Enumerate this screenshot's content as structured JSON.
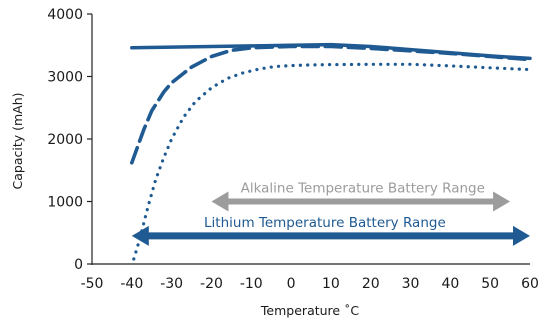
{
  "chart_data": {
    "type": "line",
    "title": "",
    "xlabel": "Temperature ˚C",
    "ylabel": "Capacity (mAh)",
    "xlim": [
      -50,
      60
    ],
    "ylim": [
      0,
      4000
    ],
    "x_ticks": [
      -50,
      -40,
      -30,
      -20,
      -10,
      0,
      10,
      20,
      30,
      40,
      50,
      60
    ],
    "y_ticks": [
      0,
      1000,
      2000,
      3000,
      4000
    ],
    "grid": false,
    "legend": "none",
    "series": [
      {
        "style": "solid",
        "color": "#1f5a92",
        "x": [
          -40,
          -30,
          -20,
          -10,
          0,
          10,
          20,
          30,
          40,
          50,
          60
        ],
        "y": [
          3460,
          3470,
          3480,
          3490,
          3500,
          3510,
          3480,
          3430,
          3380,
          3330,
          3290
        ]
      },
      {
        "style": "dashed",
        "color": "#1f5a92",
        "x": [
          -40,
          -37,
          -35,
          -32,
          -30,
          -25,
          -20,
          -15,
          -10,
          -5,
          0,
          10,
          20,
          30,
          40,
          50,
          60
        ],
        "y": [
          1620,
          2150,
          2450,
          2750,
          2900,
          3150,
          3320,
          3420,
          3460,
          3470,
          3480,
          3480,
          3450,
          3410,
          3370,
          3320,
          3270
        ]
      },
      {
        "style": "dotted",
        "color": "#1f5a92",
        "x": [
          -39.5,
          -38,
          -36,
          -34,
          -32,
          -30,
          -27,
          -24,
          -20,
          -16,
          -12,
          -8,
          -4,
          0,
          5,
          10,
          20,
          30,
          40,
          50,
          60
        ],
        "y": [
          80,
          400,
          900,
          1350,
          1700,
          2000,
          2350,
          2600,
          2820,
          2970,
          3060,
          3120,
          3160,
          3175,
          3185,
          3190,
          3195,
          3195,
          3170,
          3140,
          3110
        ]
      }
    ],
    "ranges": [
      {
        "label": "Alkaline Temperature Battery Range",
        "x_start": -20,
        "x_end": 55,
        "y": 1000,
        "color": "#9c9c9c"
      },
      {
        "label": "Lithium Temperature Battery Range",
        "x_start": -40,
        "x_end": 60,
        "y": 450,
        "color": "#1f5a92"
      }
    ]
  }
}
